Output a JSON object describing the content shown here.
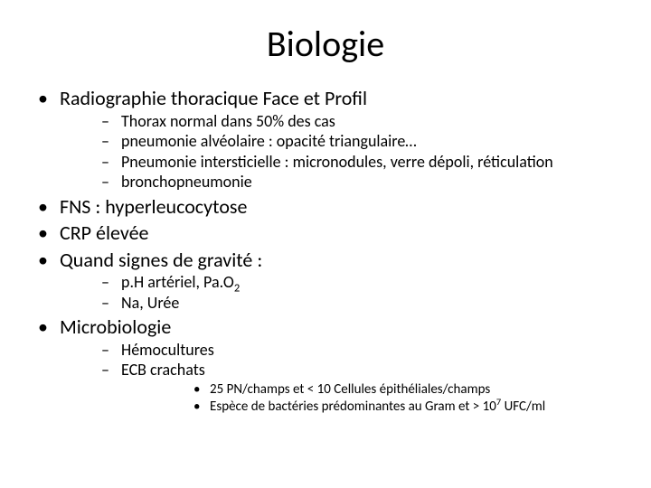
{
  "title": "Biologie",
  "items": [
    {
      "text": "Radiographie thoracique Face et Profil",
      "children": [
        {
          "text": "Thorax normal dans 50% des cas"
        },
        {
          "text": "pneumonie alvéolaire : opacité triangulaire…"
        },
        {
          "text": "Pneumonie intersticielle : micronodules, verre dépoli, réticulation"
        },
        {
          "text": "bronchopneumonie"
        }
      ]
    },
    {
      "text": "FNS : hyperleucocytose"
    },
    {
      "text": "CRP élevée"
    },
    {
      "text": "Quand signes de gravité :",
      "children": [
        {
          "html": "p.H artériel, Pa.O<span class=\"sub\">2</span>"
        },
        {
          "text": "Na, Urée"
        }
      ]
    },
    {
      "text": "Microbiologie",
      "children": [
        {
          "text": "Hémocultures"
        },
        {
          "text": "ECB crachats",
          "children": [
            {
              "text": "25 PN/champs et < 10 Cellules épithéliales/champs"
            },
            {
              "html": "Espèce de bactéries prédominantes au Gram et > 10<span class=\"sup\">7</span> UFC/ml"
            }
          ]
        }
      ]
    }
  ]
}
